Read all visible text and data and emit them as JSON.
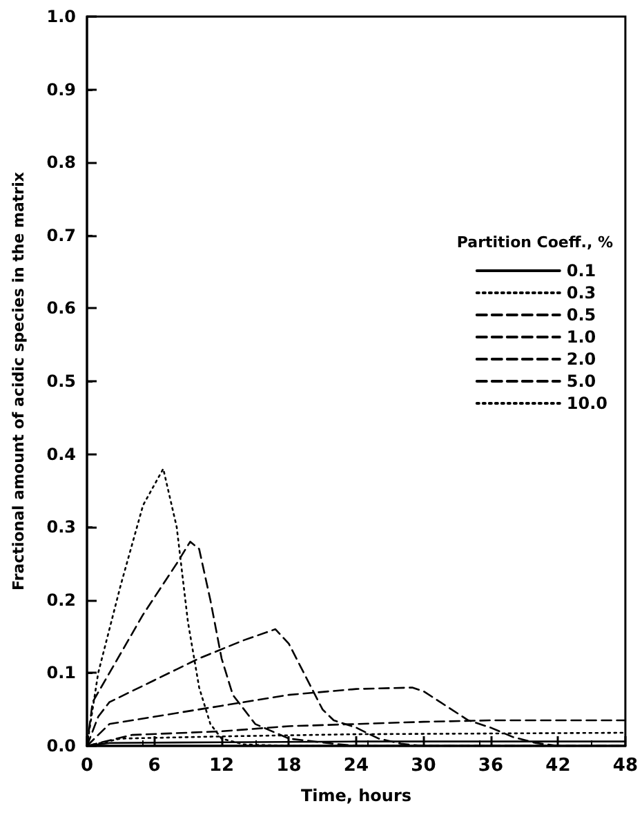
{
  "chart_data": {
    "type": "line",
    "xlabel": "Time, hours",
    "ylabel": "Fractional amount of acidic species in the matrix",
    "legend_title": "Partition Coeff., %",
    "legend": "top right",
    "marker": "none",
    "grid": false,
    "xlim": [
      0,
      48
    ],
    "xticks": [
      0,
      6,
      12,
      18,
      24,
      30,
      36,
      42,
      48
    ],
    "ylim": [
      0,
      1
    ],
    "yticks": [
      {
        "value": 0,
        "label": "0.0"
      },
      {
        "value": 0.1,
        "label": "0.1"
      },
      {
        "value": 0.2,
        "label": "0.2"
      },
      {
        "value": 0.3,
        "label": "0.3"
      },
      {
        "value": 0.4,
        "label": "0.4"
      },
      {
        "value": 0.5,
        "label": "0.5"
      },
      {
        "value": 0.6,
        "label": "0.6"
      },
      {
        "value": 0.7,
        "label": "0.7"
      },
      {
        "value": 0.8,
        "label": "0.8"
      },
      {
        "value": 0.9,
        "label": "0.9"
      },
      {
        "value": 1,
        "label": "1.0"
      }
    ],
    "series": [
      {
        "name": "0.1",
        "color": "#000000",
        "line_style": "solid",
        "x": [
          0,
          2,
          12,
          24,
          48
        ],
        "values": [
          0,
          0.004,
          0.005,
          0.006,
          0.006
        ]
      },
      {
        "name": "0.3",
        "color": "#000000",
        "line_style": "dotted",
        "x": [
          0,
          3,
          12,
          24,
          48
        ],
        "values": [
          0,
          0.01,
          0.013,
          0.016,
          0.018
        ]
      },
      {
        "name": "0.5",
        "color": "#000000",
        "line_style": "dashed",
        "x": [
          0,
          4,
          12,
          18,
          24,
          30,
          36,
          48
        ],
        "values": [
          0,
          0.015,
          0.02,
          0.027,
          0.03,
          0.033,
          0.035,
          0.035
        ]
      },
      {
        "name": "1.0",
        "color": "#000000",
        "line_style": "dashed",
        "x": [
          0,
          2,
          6,
          12,
          18,
          24,
          29,
          30,
          32,
          34,
          36,
          38,
          40,
          42,
          48
        ],
        "values": [
          0,
          0.03,
          0.04,
          0.055,
          0.07,
          0.078,
          0.08,
          0.075,
          0.055,
          0.035,
          0.025,
          0.012,
          0.004,
          0,
          0
        ]
      },
      {
        "name": "2.0",
        "color": "#000000",
        "line_style": "dashed",
        "x": [
          0,
          1,
          2,
          6,
          10,
          14,
          16.8,
          18,
          19,
          20,
          21,
          22,
          24,
          26,
          28,
          30,
          48
        ],
        "values": [
          0,
          0.04,
          0.06,
          0.09,
          0.12,
          0.145,
          0.16,
          0.14,
          0.11,
          0.08,
          0.05,
          0.035,
          0.025,
          0.01,
          0.003,
          0,
          0
        ]
      },
      {
        "name": "5.0",
        "color": "#000000",
        "line_style": "dashed",
        "x": [
          0,
          0.5,
          2,
          5,
          8,
          9.2,
          10,
          11,
          12,
          13,
          15,
          18,
          22,
          24,
          48
        ],
        "values": [
          0,
          0.06,
          0.1,
          0.18,
          0.25,
          0.28,
          0.27,
          0.2,
          0.12,
          0.07,
          0.03,
          0.01,
          0.003,
          0,
          0
        ]
      },
      {
        "name": "10.0",
        "color": "#000000",
        "line_style": "dotted",
        "x": [
          0,
          1,
          3,
          5,
          6.8,
          8,
          9,
          10,
          11,
          12,
          14,
          18,
          48
        ],
        "values": [
          0,
          0.1,
          0.22,
          0.33,
          0.38,
          0.3,
          0.17,
          0.08,
          0.03,
          0.01,
          0.002,
          0,
          0
        ]
      }
    ]
  }
}
